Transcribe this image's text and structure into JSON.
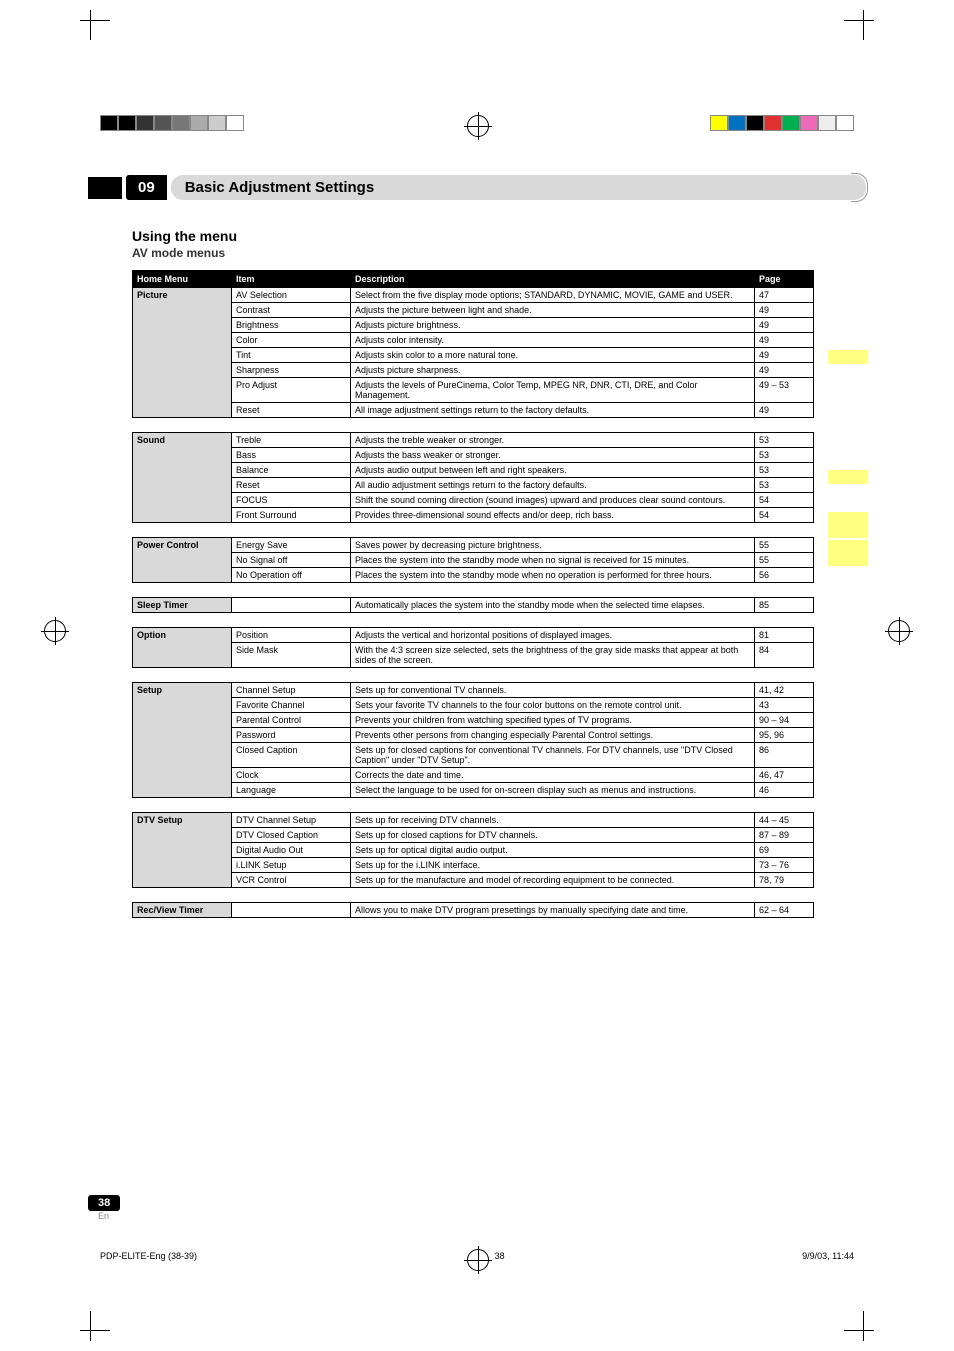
{
  "chapter_number": "09",
  "chapter_title": "Basic Adjustment Settings",
  "sub1": "Using the menu",
  "sub2": "AV mode menus",
  "columns": {
    "hm": "Home Menu",
    "item": "Item",
    "desc": "Description",
    "page": "Page"
  },
  "colorbar_left": [
    "#000000",
    "#000000",
    "#333333",
    "#555555",
    "#777777",
    "#aaaaaa",
    "#cccccc",
    "#ffffff"
  ],
  "colorbar_right": [
    "#ffff00",
    "#0070c0",
    "#000000",
    "#e03030",
    "#00b050",
    "#ec6ab7",
    "#eeeeee",
    "#ffffff"
  ],
  "tables": [
    {
      "hm": "Picture",
      "rows": [
        {
          "item": "AV Selection",
          "desc": "Select from the five display mode options; STANDARD, DYNAMIC, MOVIE, GAME and USER.",
          "page": "47"
        },
        {
          "item": "Contrast",
          "desc": "Adjusts the picture between light and shade.",
          "page": "49"
        },
        {
          "item": "Brightness",
          "desc": "Adjusts picture brightness.",
          "page": "49"
        },
        {
          "item": "Color",
          "desc": "Adjusts color intensity.",
          "page": "49"
        },
        {
          "item": "Tint",
          "desc": "Adjusts skin color to a more natural tone.",
          "page": "49"
        },
        {
          "item": "Sharpness",
          "desc": "Adjusts picture sharpness.",
          "page": "49"
        },
        {
          "item": "Pro Adjust",
          "desc": "Adjusts the levels of PureCinema, Color Temp, MPEG NR, DNR, CTI, DRE, and Color Management.",
          "page": "49 – 53"
        },
        {
          "item": "Reset",
          "desc": "All image adjustment settings return to the factory defaults.",
          "page": "49"
        }
      ]
    },
    {
      "hm": "Sound",
      "rows": [
        {
          "item": "Treble",
          "desc": "Adjusts the treble weaker or stronger.",
          "page": "53"
        },
        {
          "item": "Bass",
          "desc": "Adjusts the bass weaker or stronger.",
          "page": "53"
        },
        {
          "item": "Balance",
          "desc": "Adjusts audio output between left and right speakers.",
          "page": "53"
        },
        {
          "item": "Reset",
          "desc": "All audio adjustment settings return to the factory defaults.",
          "page": "53"
        },
        {
          "item": "FOCUS",
          "desc": "Shift the sound coming direction (sound images) upward and produces clear sound contours.",
          "page": "54"
        },
        {
          "item": "Front Surround",
          "desc": "Provides three-dimensional sound effects and/or deep, rich bass.",
          "page": "54"
        }
      ]
    },
    {
      "hm": "Power Control",
      "rows": [
        {
          "item": "Energy Save",
          "desc": "Saves power by decreasing picture brightness.",
          "page": "55"
        },
        {
          "item": "No Signal off",
          "desc": "Places the system into the standby mode when no signal is received for 15 minutes.",
          "page": "55"
        },
        {
          "item": "No Operation off",
          "desc": "Places the system into the standby mode when no operation is performed for three hours.",
          "page": "56"
        }
      ]
    },
    {
      "hm": "Sleep Timer",
      "rows": [
        {
          "item": "",
          "desc": "Automatically places the system into the standby mode when the selected time elapses.",
          "page": "85"
        }
      ]
    },
    {
      "hm": "Option",
      "rows": [
        {
          "item": "Position",
          "desc": "Adjusts the vertical and horizontal positions of displayed images.",
          "page": "81"
        },
        {
          "item": "Side Mask",
          "desc": "With the 4:3 screen size selected, sets the brightness of the gray side masks that appear at both sides of the screen.",
          "page": "84"
        }
      ]
    },
    {
      "hm": "Setup",
      "rows": [
        {
          "item": "Channel Setup",
          "desc": "Sets up for conventional TV channels.",
          "page": "41, 42"
        },
        {
          "item": "Favorite Channel",
          "desc": "Sets your favorite TV channels to the four color buttons on the remote control unit.",
          "page": "43"
        },
        {
          "item": "Parental Control",
          "desc": "Prevents your children from watching specified types of TV programs.",
          "page": "90 – 94"
        },
        {
          "item": "Password",
          "desc": "Prevents other persons from changing especially Parental Control settings.",
          "page": "95, 96"
        },
        {
          "item": "Closed Caption",
          "desc": "Sets up for closed captions for conventional TV channels. For DTV channels, use \"DTV Closed Caption\" under \"DTV Setup\".",
          "page": "86"
        },
        {
          "item": "Clock",
          "desc": "Corrects the date and time.",
          "page": "46, 47"
        },
        {
          "item": "Language",
          "desc": "Select the language to be used for on-screen display such as menus and instructions.",
          "page": "46"
        }
      ]
    },
    {
      "hm": "DTV Setup",
      "rows": [
        {
          "item": "DTV Channel Setup",
          "desc": "Sets up for receiving DTV channels.",
          "page": "44 – 45"
        },
        {
          "item": "DTV Closed Caption",
          "desc": "Sets up for closed captions for DTV channels.",
          "page": "87 – 89"
        },
        {
          "item": "Digital Audio Out",
          "desc": "Sets up for optical digital audio output.",
          "page": "69"
        },
        {
          "item": "i.LINK Setup",
          "desc": "Sets up for the i.LINK interface.",
          "page": "73 – 76"
        },
        {
          "item": "VCR Control",
          "desc": "Sets up for the manufacture and model of recording equipment to be connected.",
          "page": "78, 79"
        }
      ]
    },
    {
      "hm": "Rec/View Timer",
      "rows": [
        {
          "item": "",
          "desc": "Allows you to make DTV program presettings by manually specifying date and time.",
          "page": "62 – 64"
        }
      ]
    }
  ],
  "page_number": "38",
  "lang": "En",
  "footer_left": "PDP-ELITE-Eng (38-39)",
  "footer_mid": "38",
  "footer_right": "9/9/03, 11:44"
}
